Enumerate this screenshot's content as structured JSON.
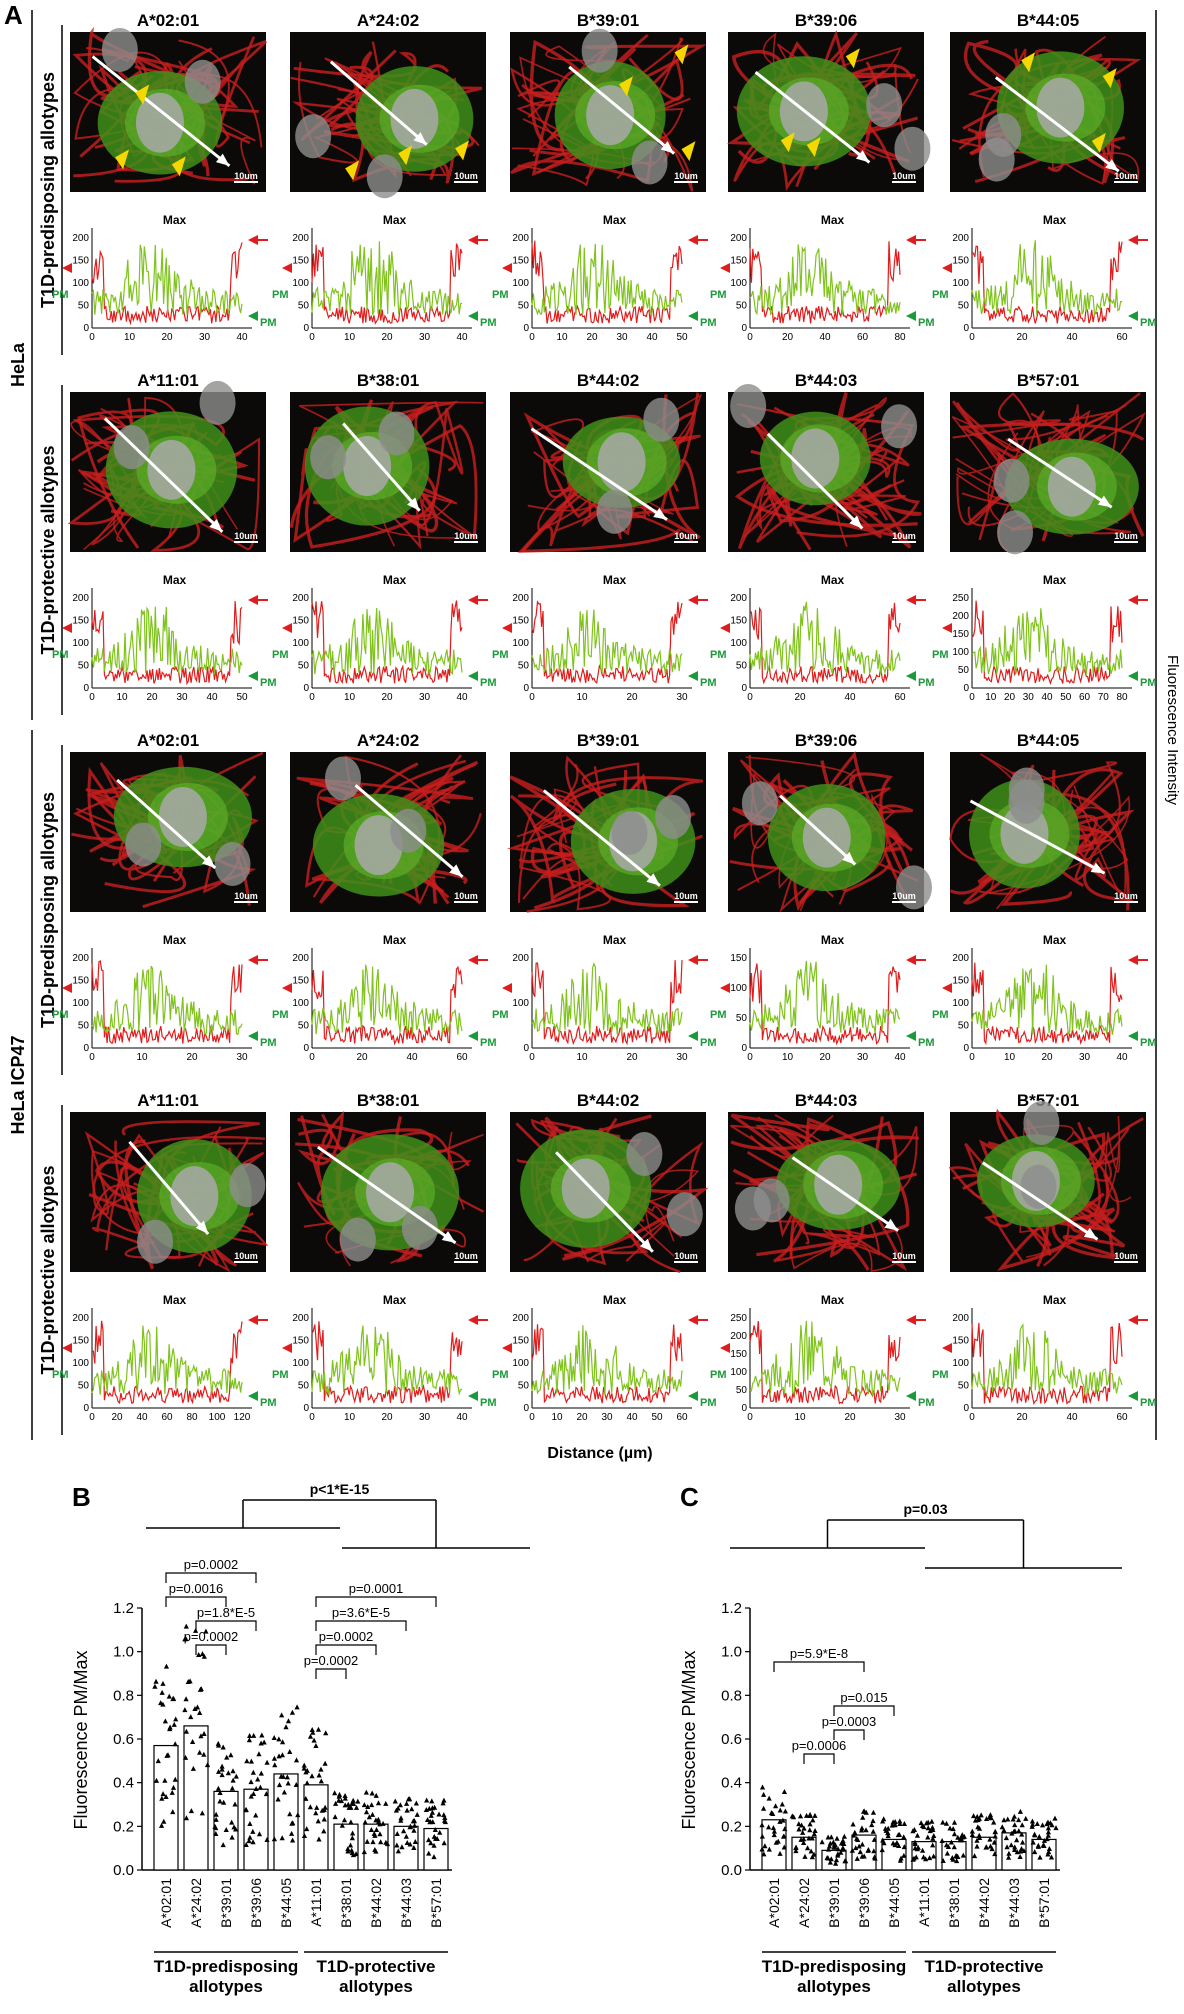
{
  "panel_A": {
    "letter": "A",
    "group_hela": "HeLa",
    "group_icp47": "HeLa ICP47",
    "row_predisposing": "T1D-predisposing allotypes",
    "row_protective": "T1D-protective allotypes",
    "alleles_predisposing": [
      "A*02:01",
      "A*24:02",
      "B*39:01",
      "B*39:06",
      "B*44:05"
    ],
    "alleles_protective": [
      "A*11:01",
      "B*38:01",
      "B*44:02",
      "B*44:03",
      "B*57:01"
    ],
    "scale_bar": "10um",
    "max_label": "Max",
    "pm_label": "PM",
    "x_axis_label": "Distance (µm)",
    "y_axis_label": "Fluorescence Intensity",
    "colors": {
      "green_channel": "#7fc31c",
      "red_channel": "#e01c1c",
      "arrowhead": "#f5d800",
      "pm_arrow": "#1a9a3a",
      "red_arrow": "#e01c1c"
    },
    "line_profiles": [
      {
        "row": 1,
        "xticks": [
          "0",
          "10",
          "20",
          "30",
          "40"
        ],
        "yticks": [
          "0",
          "50",
          "100",
          "150",
          "200"
        ]
      },
      {
        "row": 1,
        "xticks": [
          "0",
          "10",
          "20",
          "30",
          "40"
        ],
        "yticks": [
          "0",
          "50",
          "100",
          "150",
          "200"
        ]
      },
      {
        "row": 1,
        "xticks": [
          "0",
          "10",
          "20",
          "30",
          "40",
          "50"
        ],
        "yticks": [
          "0",
          "50",
          "100",
          "150",
          "200"
        ]
      },
      {
        "row": 1,
        "xticks": [
          "0",
          "20",
          "40",
          "60",
          "80"
        ],
        "yticks": [
          "0",
          "50",
          "100",
          "150",
          "200"
        ]
      },
      {
        "row": 1,
        "xticks": [
          "0",
          "20",
          "40",
          "60"
        ],
        "yticks": [
          "0",
          "50",
          "100",
          "150",
          "200"
        ]
      },
      {
        "row": 2,
        "xticks": [
          "0",
          "10",
          "20",
          "30",
          "40",
          "50"
        ],
        "yticks": [
          "0",
          "50",
          "100",
          "150",
          "200"
        ]
      },
      {
        "row": 2,
        "xticks": [
          "0",
          "10",
          "20",
          "30",
          "40"
        ],
        "yticks": [
          "0",
          "50",
          "100",
          "150",
          "200"
        ]
      },
      {
        "row": 2,
        "xticks": [
          "0",
          "10",
          "20",
          "30"
        ],
        "yticks": [
          "0",
          "50",
          "100",
          "150",
          "200"
        ]
      },
      {
        "row": 2,
        "xticks": [
          "0",
          "20",
          "40",
          "60"
        ],
        "yticks": [
          "0",
          "50",
          "100",
          "150",
          "200"
        ]
      },
      {
        "row": 2,
        "xticks": [
          "0",
          "10",
          "20",
          "30",
          "40",
          "50",
          "60",
          "70",
          "80"
        ],
        "yticks": [
          "0",
          "50",
          "100",
          "150",
          "200",
          "250"
        ]
      },
      {
        "row": 3,
        "xticks": [
          "0",
          "10",
          "20",
          "30"
        ],
        "yticks": [
          "0",
          "50",
          "100",
          "150",
          "200"
        ]
      },
      {
        "row": 3,
        "xticks": [
          "0",
          "20",
          "40",
          "60"
        ],
        "yticks": [
          "0",
          "50",
          "100",
          "150",
          "200"
        ]
      },
      {
        "row": 3,
        "xticks": [
          "0",
          "10",
          "20",
          "30"
        ],
        "yticks": [
          "0",
          "100",
          "200"
        ]
      },
      {
        "row": 3,
        "xticks": [
          "0",
          "10",
          "20",
          "30",
          "40"
        ],
        "yticks": [
          "0",
          "50",
          "100",
          "150"
        ]
      },
      {
        "row": 3,
        "xticks": [
          "0",
          "10",
          "20",
          "30",
          "40"
        ],
        "yticks": [
          "0",
          "50",
          "100",
          "150",
          "200"
        ]
      },
      {
        "row": 4,
        "xticks": [
          "0",
          "20",
          "40",
          "60",
          "80",
          "100",
          "120"
        ],
        "yticks": [
          "0",
          "50",
          "100",
          "150",
          "200"
        ]
      },
      {
        "row": 4,
        "xticks": [
          "0",
          "10",
          "20",
          "30",
          "40"
        ],
        "yticks": [
          "0",
          "50",
          "100",
          "150",
          "200"
        ]
      },
      {
        "row": 4,
        "xticks": [
          "0",
          "10",
          "20",
          "30",
          "40",
          "50",
          "60"
        ],
        "yticks": [
          "0",
          "50",
          "100",
          "150",
          "200"
        ]
      },
      {
        "row": 4,
        "xticks": [
          "0",
          "10",
          "20",
          "30"
        ],
        "yticks": [
          "0",
          "50",
          "100",
          "150",
          "200",
          "250"
        ]
      },
      {
        "row": 4,
        "xticks": [
          "0",
          "20",
          "40",
          "60"
        ],
        "yticks": [
          "0",
          "50",
          "100",
          "150",
          "200"
        ]
      }
    ]
  },
  "panel_B_letter": "B",
  "panel_C_letter": "C",
  "group_label_predisposing": [
    "T1D-predisposing",
    "allotypes"
  ],
  "group_label_protective": [
    "T1D-protective",
    "allotypes"
  ],
  "chart_data": [
    {
      "type": "bar",
      "panel": "B",
      "ylabel": "Fluorescence PM/Max",
      "ylim": [
        0.0,
        1.2
      ],
      "yticks": [
        "0.0",
        "0.2",
        "0.4",
        "0.6",
        "0.8",
        "1.0",
        "1.2"
      ],
      "categories": [
        "A*02:01",
        "A*24:02",
        "B*39:01",
        "B*39:06",
        "B*44:05",
        "A*11:01",
        "B*38:01",
        "B*44:02",
        "B*44:03",
        "B*57:01"
      ],
      "values": [
        0.57,
        0.66,
        0.36,
        0.37,
        0.44,
        0.39,
        0.21,
        0.21,
        0.2,
        0.19
      ],
      "comparisons": [
        {
          "label": "p<1*E-15"
        },
        {
          "label": "p=0.0002"
        },
        {
          "label": "p=0.0016"
        },
        {
          "label": "p=1.8*E-5"
        },
        {
          "label": "p=0.0002"
        },
        {
          "label": "p=0.0001"
        },
        {
          "label": "p=3.6*E-5"
        },
        {
          "label": "p=0.0002"
        },
        {
          "label": "p=0.0002"
        }
      ]
    },
    {
      "type": "bar",
      "panel": "C",
      "ylabel": "Fluorescence PM/Max",
      "ylim": [
        0.0,
        1.2
      ],
      "yticks": [
        "0.0",
        "0.2",
        "0.4",
        "0.6",
        "0.8",
        "1.0",
        "1.2"
      ],
      "categories": [
        "A*02:01",
        "A*24:02",
        "B*39:01",
        "B*39:06",
        "B*44:05",
        "A*11:01",
        "B*38:01",
        "B*44:02",
        "B*44:03",
        "B*57:01"
      ],
      "values": [
        0.23,
        0.15,
        0.09,
        0.16,
        0.14,
        0.13,
        0.13,
        0.15,
        0.17,
        0.14
      ],
      "comparisons": [
        {
          "label": "p=0.03"
        },
        {
          "label": "p=5.9*E-8"
        },
        {
          "label": "p=0.015"
        },
        {
          "label": "p=0.0003"
        },
        {
          "label": "p=0.0006"
        }
      ]
    }
  ]
}
